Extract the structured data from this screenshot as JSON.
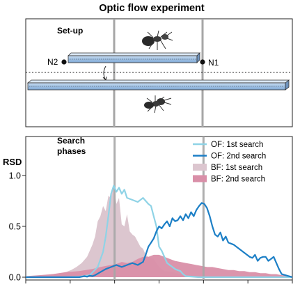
{
  "title": "Optic flow experiment",
  "setup_panel": {
    "label": "Set-up",
    "node_left": "N2",
    "node_right": "N1"
  },
  "chart_data": {
    "type": "area",
    "title": "Optic flow experiment",
    "panel_label": [
      "Search",
      "phases"
    ],
    "xlabel": "",
    "ylabel": "RSD",
    "ylim": [
      0,
      1.3
    ],
    "xlim": [
      0,
      100
    ],
    "yticks": [
      0.0,
      0.5,
      1.0
    ],
    "ytick_labels": [
      "0.0",
      "0.5",
      "1.0"
    ],
    "xticks": [
      0,
      16.67,
      33.33,
      50,
      66.67,
      83.33,
      100
    ],
    "vlines": [
      33.33,
      66.67
    ],
    "legend_position": "top-right",
    "series": [
      {
        "name": "OF: 1st search",
        "kind": "line",
        "color": "#8fd3e6",
        "x": [
          0,
          15,
          20,
          24,
          27,
          29,
          30,
          31,
          32,
          33,
          34,
          35,
          36,
          37,
          38,
          40,
          42,
          44,
          46,
          47,
          48,
          49,
          50,
          51,
          52,
          53,
          54,
          55,
          56,
          57,
          58,
          59,
          60,
          65,
          70,
          75,
          80,
          85,
          90,
          95,
          100
        ],
        "y": [
          0,
          0,
          0.005,
          0.02,
          0.1,
          0.25,
          0.4,
          0.6,
          0.82,
          0.9,
          0.84,
          0.88,
          0.82,
          0.86,
          0.78,
          0.76,
          0.74,
          0.78,
          0.72,
          0.7,
          0.6,
          0.5,
          0.3,
          0.26,
          0.2,
          0.14,
          0.12,
          0.1,
          0.08,
          0.07,
          0.06,
          0.03,
          0.01,
          0,
          0,
          0,
          0,
          0,
          0,
          0,
          0
        ]
      },
      {
        "name": "OF: 2nd search",
        "kind": "line",
        "color": "#1c7fc6",
        "x": [
          0,
          20,
          21,
          22,
          23,
          24,
          25,
          26,
          28,
          30,
          32,
          34,
          36,
          38,
          40,
          42,
          44,
          45,
          46,
          47,
          48,
          49,
          50,
          51,
          52,
          53,
          54,
          55,
          56,
          57,
          58,
          59,
          60,
          61,
          62,
          63,
          64,
          65,
          66,
          67,
          68,
          69,
          70,
          71,
          72,
          73,
          74,
          75,
          76,
          77,
          78,
          79,
          80,
          81,
          82,
          83,
          84,
          85,
          86,
          87,
          88,
          89,
          90,
          91,
          92,
          93,
          94,
          95,
          96,
          100
        ],
        "y": [
          0,
          0,
          0.005,
          0.01,
          0.005,
          0.015,
          0.01,
          0.02,
          0.05,
          0.08,
          0.1,
          0.12,
          0.1,
          0.12,
          0.14,
          0.12,
          0.15,
          0.22,
          0.3,
          0.34,
          0.38,
          0.45,
          0.5,
          0.48,
          0.52,
          0.55,
          0.5,
          0.58,
          0.55,
          0.56,
          0.6,
          0.56,
          0.62,
          0.58,
          0.64,
          0.6,
          0.66,
          0.7,
          0.73,
          0.72,
          0.68,
          0.6,
          0.5,
          0.42,
          0.4,
          0.44,
          0.36,
          0.4,
          0.34,
          0.33,
          0.32,
          0.3,
          0.28,
          0.26,
          0.24,
          0.22,
          0.2,
          0.19,
          0.22,
          0.16,
          0.19,
          0.2,
          0.2,
          0.16,
          0.18,
          0.2,
          0.14,
          0.08,
          0.03,
          0
        ]
      },
      {
        "name": "BF: 1st search",
        "kind": "area",
        "color": "#dcc6cf",
        "x": [
          0,
          5,
          10,
          14,
          17,
          19,
          21,
          23,
          25,
          26,
          27,
          28,
          29,
          30,
          31,
          32,
          33,
          34,
          35,
          36,
          37,
          38,
          39,
          40,
          41,
          42,
          43,
          44,
          45,
          46,
          48,
          50,
          52,
          55,
          58,
          60,
          65,
          70,
          80,
          90,
          100
        ],
        "y": [
          0,
          0.01,
          0.03,
          0.04,
          0.07,
          0.1,
          0.14,
          0.2,
          0.32,
          0.4,
          0.55,
          0.6,
          0.7,
          0.65,
          0.8,
          0.78,
          0.9,
          0.72,
          0.78,
          0.52,
          0.5,
          0.62,
          0.45,
          0.42,
          0.4,
          0.35,
          0.3,
          0.28,
          0.22,
          0.2,
          0.18,
          0.1,
          0.06,
          0.05,
          0.03,
          0.02,
          0.01,
          0.005,
          0,
          0,
          0
        ]
      },
      {
        "name": "BF: 2nd search",
        "kind": "area",
        "color": "#d98fa8",
        "x": [
          0,
          5,
          10,
          15,
          20,
          25,
          28,
          30,
          32,
          34,
          36,
          38,
          40,
          42,
          44,
          46,
          48,
          50,
          52,
          54,
          56,
          58,
          60,
          62,
          64,
          66,
          68,
          70,
          72,
          74,
          76,
          78,
          80,
          82,
          84,
          86,
          88,
          90,
          92,
          94,
          96,
          98,
          100
        ],
        "y": [
          0.01,
          0.02,
          0.03,
          0.05,
          0.06,
          0.08,
          0.1,
          0.11,
          0.12,
          0.13,
          0.15,
          0.14,
          0.15,
          0.18,
          0.2,
          0.2,
          0.22,
          0.22,
          0.2,
          0.18,
          0.16,
          0.15,
          0.14,
          0.13,
          0.12,
          0.11,
          0.1,
          0.1,
          0.09,
          0.08,
          0.07,
          0.07,
          0.06,
          0.06,
          0.05,
          0.05,
          0.04,
          0.04,
          0.03,
          0.03,
          0.02,
          0.02,
          0.01
        ]
      }
    ]
  }
}
